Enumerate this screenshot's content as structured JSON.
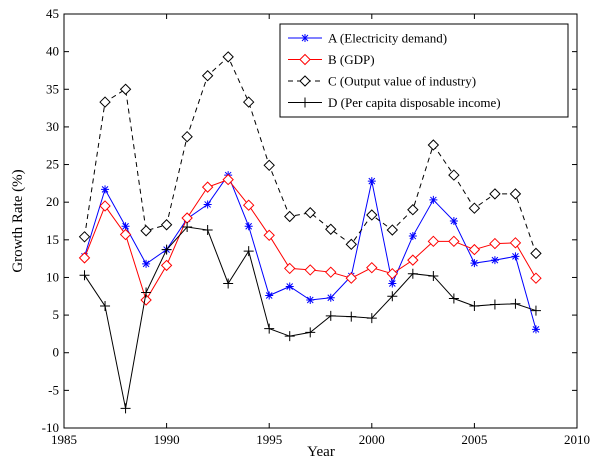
{
  "chart_data": {
    "type": "line",
    "x_label": "Year",
    "y_label": "Growth Rate (%)",
    "x": [
      1986,
      1987,
      1988,
      1989,
      1990,
      1991,
      1992,
      1993,
      1994,
      1995,
      1996,
      1997,
      1998,
      1999,
      2000,
      2001,
      2002,
      2003,
      2004,
      2005,
      2006,
      2007,
      2008
    ],
    "series": [
      {
        "name": "A (Electricity demand)",
        "color": "#0000ff",
        "marker": "*",
        "linestyle": "solid",
        "values": [
          12.8,
          21.7,
          16.8,
          11.8,
          13.7,
          17.8,
          19.7,
          23.6,
          16.8,
          7.6,
          8.8,
          7.0,
          7.3,
          10.2,
          22.8,
          9.2,
          15.5,
          20.3,
          17.5,
          11.9,
          12.3,
          12.8,
          3.1
        ]
      },
      {
        "name": "B (GDP)",
        "color": "#ff0000",
        "marker": "diamond",
        "linestyle": "solid",
        "values": [
          12.6,
          19.5,
          15.7,
          7.0,
          11.6,
          17.9,
          22.0,
          23.0,
          19.6,
          15.6,
          11.2,
          11.0,
          10.7,
          9.9,
          11.3,
          10.5,
          12.3,
          14.8,
          14.8,
          13.7,
          14.5,
          14.6,
          9.9
        ]
      },
      {
        "name": "C (Output value of industry)",
        "color": "#000000",
        "marker": "diamond",
        "linestyle": "dashed",
        "values": [
          15.4,
          33.3,
          35.0,
          16.2,
          17.0,
          28.7,
          36.8,
          39.3,
          33.3,
          24.9,
          18.1,
          18.6,
          16.4,
          14.4,
          18.3,
          16.3,
          19.0,
          27.6,
          23.6,
          19.2,
          21.1,
          21.1,
          13.2
        ]
      },
      {
        "name": "D (Per capita disposable income)",
        "color": "#000000",
        "marker": "+",
        "linestyle": "solid",
        "values": [
          10.3,
          6.2,
          -7.4,
          8.0,
          13.7,
          16.7,
          16.3,
          9.2,
          13.5,
          3.2,
          2.2,
          2.7,
          4.9,
          4.8,
          4.6,
          7.5,
          10.5,
          10.2,
          7.2,
          6.2,
          6.4,
          6.5,
          5.6
        ]
      }
    ],
    "xlim": [
      1985,
      2010
    ],
    "xticks": [
      1985,
      1990,
      1995,
      2000,
      2005,
      2010
    ],
    "ylim": [
      -10,
      45
    ],
    "yticks": [
      -10,
      -5,
      0,
      5,
      10,
      15,
      20,
      25,
      30,
      35,
      40,
      45
    ],
    "grid": false,
    "legend_position": "upper-right"
  }
}
